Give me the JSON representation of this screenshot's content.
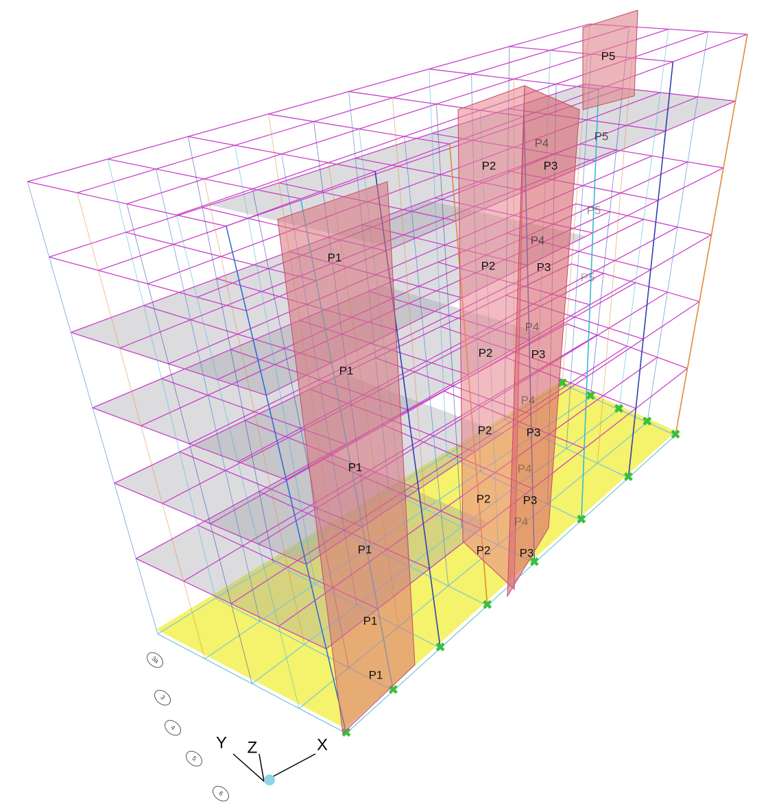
{
  "panel_labels": [
    "P5",
    "P5",
    "P5",
    "P5",
    "P4",
    "P4",
    "P4",
    "P4",
    "P4",
    "P4",
    "P2",
    "P2",
    "P2",
    "P2",
    "P2",
    "P2",
    "P3",
    "P3",
    "P3",
    "P3",
    "P3",
    "P3",
    "P1",
    "P1",
    "P1",
    "P1",
    "P1",
    "P1"
  ],
  "axes": {
    "x": "X",
    "y": "Y",
    "z": "Z"
  },
  "grid_bubbles": [
    "3a",
    "3",
    "4",
    "5",
    "6"
  ]
}
